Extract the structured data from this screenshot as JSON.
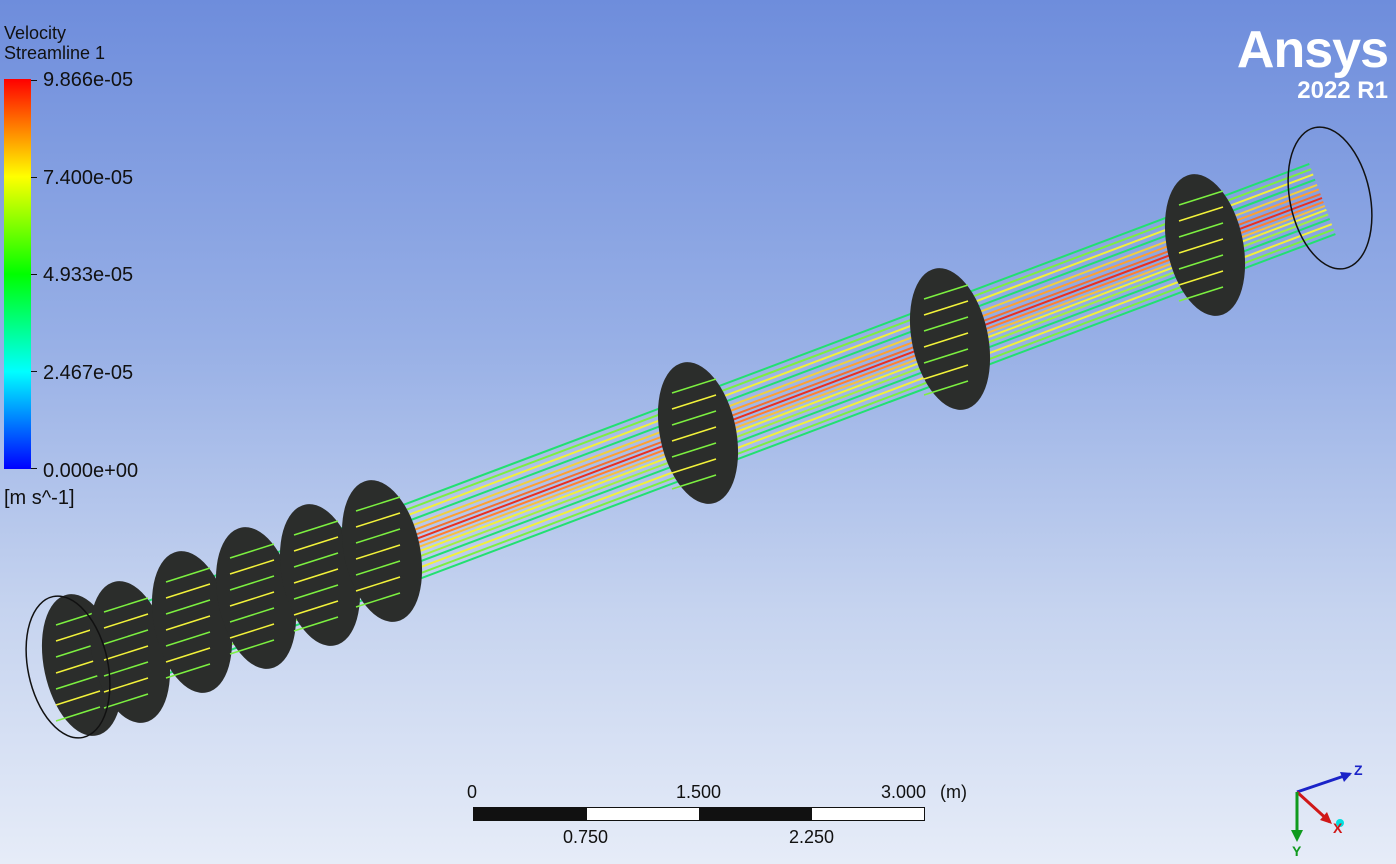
{
  "legend": {
    "variable": "Velocity",
    "object": "Streamline 1",
    "labels": [
      "9.866e-05",
      "7.400e-05",
      "4.933e-05",
      "2.467e-05",
      "0.000e+00"
    ],
    "unit": "[m s^-1]",
    "colors": [
      "#ff0000",
      "#ffff00",
      "#00ff00",
      "#00ffff",
      "#0000ff"
    ]
  },
  "brand": {
    "name": "Ansys",
    "version": "2022 R1"
  },
  "scale": {
    "top_labels": [
      "0",
      "1.500",
      "3.000"
    ],
    "unit": "(m)",
    "bottom_labels": [
      "0.750",
      "2.250"
    ]
  },
  "axes": {
    "x": "X",
    "y": "Y",
    "z": "Z"
  }
}
